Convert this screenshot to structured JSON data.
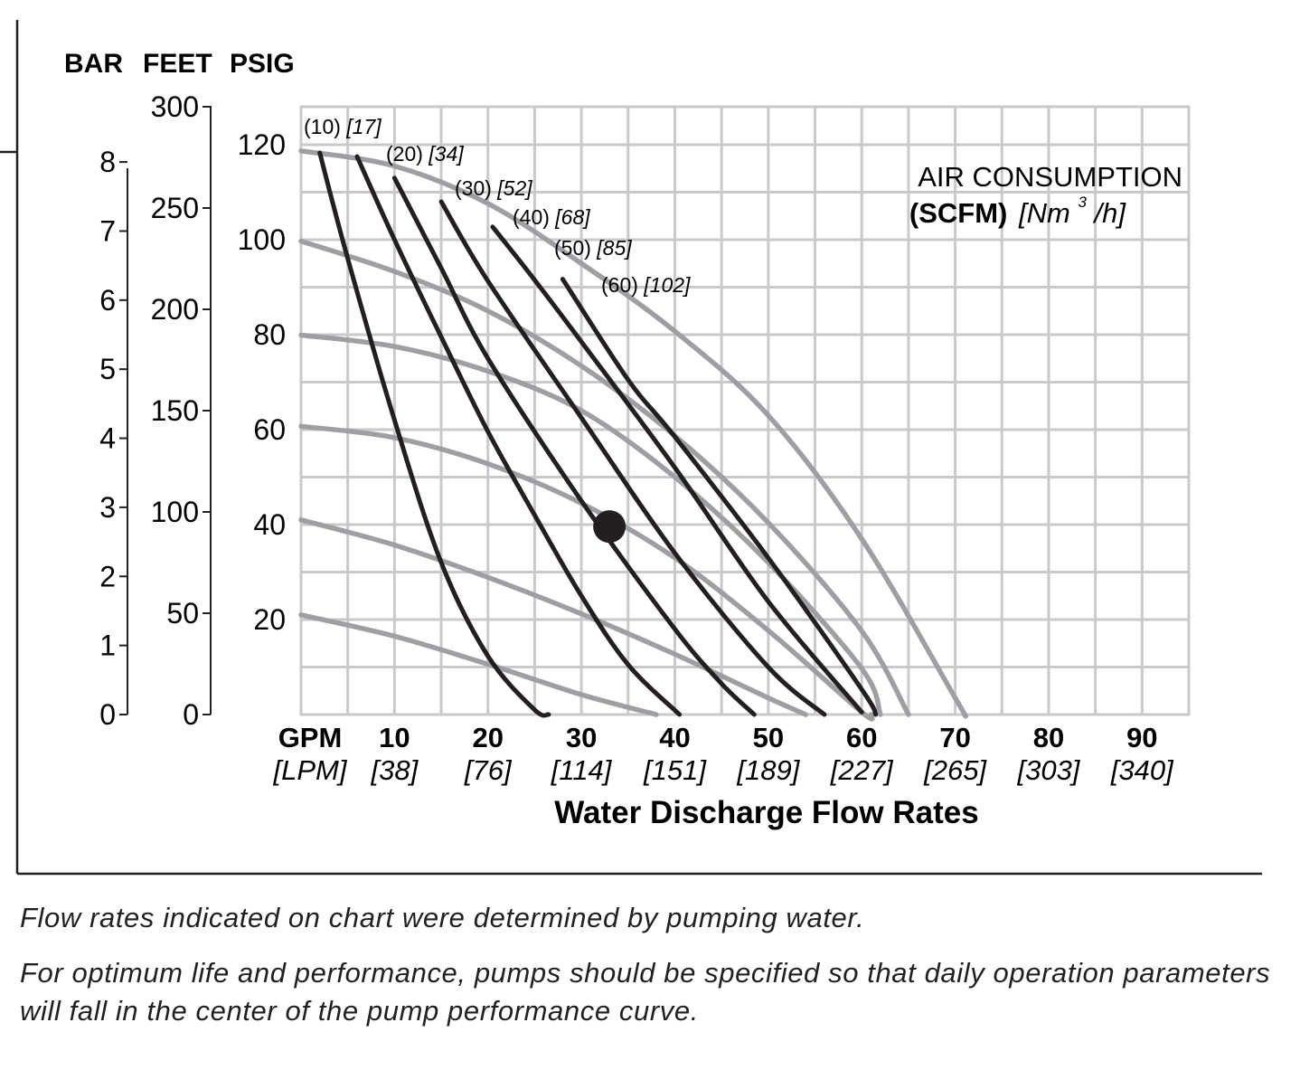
{
  "chart_data": {
    "type": "line",
    "x_axis": {
      "range": [
        0,
        95
      ],
      "ticks": [
        0,
        10,
        20,
        30,
        40,
        50,
        60,
        70,
        80,
        90
      ],
      "gpm_labels": [
        "GPM",
        "10",
        "20",
        "30",
        "40",
        "50",
        "60",
        "70",
        "80",
        "90"
      ],
      "lpm_labels": [
        "[LPM]",
        "[38]",
        "[76]",
        "[114]",
        "[151]",
        "[189]",
        "[227]",
        "[265]",
        "[303]",
        "[340]"
      ],
      "title": "Water Discharge Flow Rates"
    },
    "y_axes": {
      "header": [
        "BAR",
        "FEET",
        "PSIG"
      ],
      "feet": {
        "range": [
          0,
          300
        ],
        "labels": [
          "0",
          "50",
          "100",
          "150",
          "200",
          "250",
          "300"
        ]
      },
      "psig": {
        "range": [
          0,
          128
        ],
        "labels": [
          "20",
          "40",
          "60",
          "80",
          "100",
          "120"
        ]
      },
      "bar": {
        "range": [
          0,
          8.8
        ],
        "labels": [
          "0",
          "1",
          "2",
          "3",
          "4",
          "5",
          "6",
          "7",
          "8"
        ]
      }
    },
    "grid": true,
    "legend": {
      "placement": "top-right",
      "title": "AIR CONSUMPTION",
      "unit_bold": "(SCFM)",
      "unit_metric": "[Nm",
      "unit_metric_sup": "3",
      "unit_metric_end": "/h]"
    },
    "series": [
      {
        "group": "air-inlet-pressure",
        "color": "#9d9fa2",
        "points": [
          [
            0,
            21
          ],
          [
            10,
            16.5
          ],
          [
            20,
            10.6
          ],
          [
            30,
            4.2
          ],
          [
            38,
            0
          ]
        ]
      },
      {
        "group": "air-inlet-pressure",
        "color": "#9d9fa2",
        "points": [
          [
            0,
            41
          ],
          [
            10,
            35.7
          ],
          [
            20,
            28.9
          ],
          [
            30,
            21.2
          ],
          [
            40,
            12.7
          ],
          [
            50,
            3.5
          ],
          [
            54,
            0
          ]
        ]
      },
      {
        "group": "air-inlet-pressure",
        "color": "#9d9fa2",
        "points": [
          [
            0,
            60.7
          ],
          [
            10,
            58.3
          ],
          [
            20,
            52.8
          ],
          [
            30,
            44.5
          ],
          [
            40,
            33
          ],
          [
            50,
            17.7
          ],
          [
            60,
            0.5
          ],
          [
            61,
            0
          ]
        ]
      },
      {
        "group": "air-inlet-pressure",
        "color": "#9d9fa2",
        "points": [
          [
            0,
            79.9
          ],
          [
            10,
            77.5
          ],
          [
            20,
            72.3
          ],
          [
            30,
            64
          ],
          [
            40,
            50
          ],
          [
            50,
            32
          ],
          [
            60,
            9.7
          ],
          [
            62,
            0
          ]
        ]
      },
      {
        "group": "air-inlet-pressure",
        "color": "#9d9fa2",
        "points": [
          [
            0,
            99.7
          ],
          [
            10,
            93.3
          ],
          [
            20,
            85
          ],
          [
            30,
            73.4
          ],
          [
            40,
            58.7
          ],
          [
            50,
            40.4
          ],
          [
            60,
            17.6
          ],
          [
            65,
            0
          ]
        ]
      },
      {
        "group": "air-inlet-pressure",
        "color": "#9d9fa2",
        "points": [
          [
            0,
            118.7
          ],
          [
            10,
            115.5
          ],
          [
            20,
            107.6
          ],
          [
            30,
            95
          ],
          [
            40,
            80.7
          ],
          [
            50,
            63
          ],
          [
            60,
            37
          ],
          [
            70,
            3.5
          ],
          [
            71,
            0
          ]
        ]
      },
      {
        "name": "(10) [17]",
        "label_main": "(10)",
        "label_metric": "[17]",
        "group": "air-consumption",
        "color": "#231f20",
        "points": [
          [
            2,
            118.3
          ],
          [
            5,
            96
          ],
          [
            10,
            62
          ],
          [
            15,
            32
          ],
          [
            20,
            12.3
          ],
          [
            25,
            1
          ],
          [
            26.5,
            0
          ]
        ]
      },
      {
        "name": "(20) [34]",
        "label_main": "(20)",
        "label_metric": "[34]",
        "group": "air-consumption",
        "color": "#231f20",
        "points": [
          [
            6,
            117.5
          ],
          [
            10,
            100
          ],
          [
            15,
            79.5
          ],
          [
            20,
            59.6
          ],
          [
            25,
            42
          ],
          [
            30,
            25
          ],
          [
            35,
            10.5
          ],
          [
            40.5,
            0
          ]
        ]
      },
      {
        "name": "(30) [52]",
        "label_main": "(30)",
        "label_metric": "[52]",
        "group": "air-consumption",
        "color": "#231f20",
        "points": [
          [
            10,
            113
          ],
          [
            15,
            94
          ],
          [
            20,
            75
          ],
          [
            30,
            45
          ],
          [
            40,
            18
          ],
          [
            45,
            6.5
          ],
          [
            48.5,
            0
          ]
        ]
      },
      {
        "name": "(40) [68]",
        "label_main": "(40)",
        "label_metric": "[68]",
        "group": "air-consumption",
        "color": "#231f20",
        "points": [
          [
            15,
            108
          ],
          [
            20,
            91.3
          ],
          [
            30,
            62.5
          ],
          [
            40,
            34
          ],
          [
            50,
            10
          ],
          [
            56,
            0
          ]
        ]
      },
      {
        "name": "(50) [85]",
        "label_main": "(50)",
        "label_metric": "[85]",
        "group": "air-consumption",
        "color": "#231f20",
        "points": [
          [
            20.5,
            102.7
          ],
          [
            25,
            91.5
          ],
          [
            30,
            78.5
          ],
          [
            40,
            52
          ],
          [
            50,
            23.8
          ],
          [
            60,
            0.5
          ]
        ]
      },
      {
        "name": "(60) [102]",
        "label_main": "(60)",
        "label_metric": "[102]",
        "group": "air-consumption",
        "color": "#231f20",
        "points": [
          [
            28,
            91.7
          ],
          [
            35,
            70.5
          ],
          [
            40,
            58.5
          ],
          [
            50,
            33
          ],
          [
            60,
            5.3
          ],
          [
            61.5,
            0
          ]
        ]
      }
    ],
    "marker": {
      "x": 33,
      "y": 39.6,
      "color": "#231f20"
    }
  },
  "notes": [
    "Flow rates indicated on chart were determined by pumping water.",
    "For optimum life and performance, pumps should be specified so that daily operation parameters will fall in the center of the pump performance curve."
  ]
}
